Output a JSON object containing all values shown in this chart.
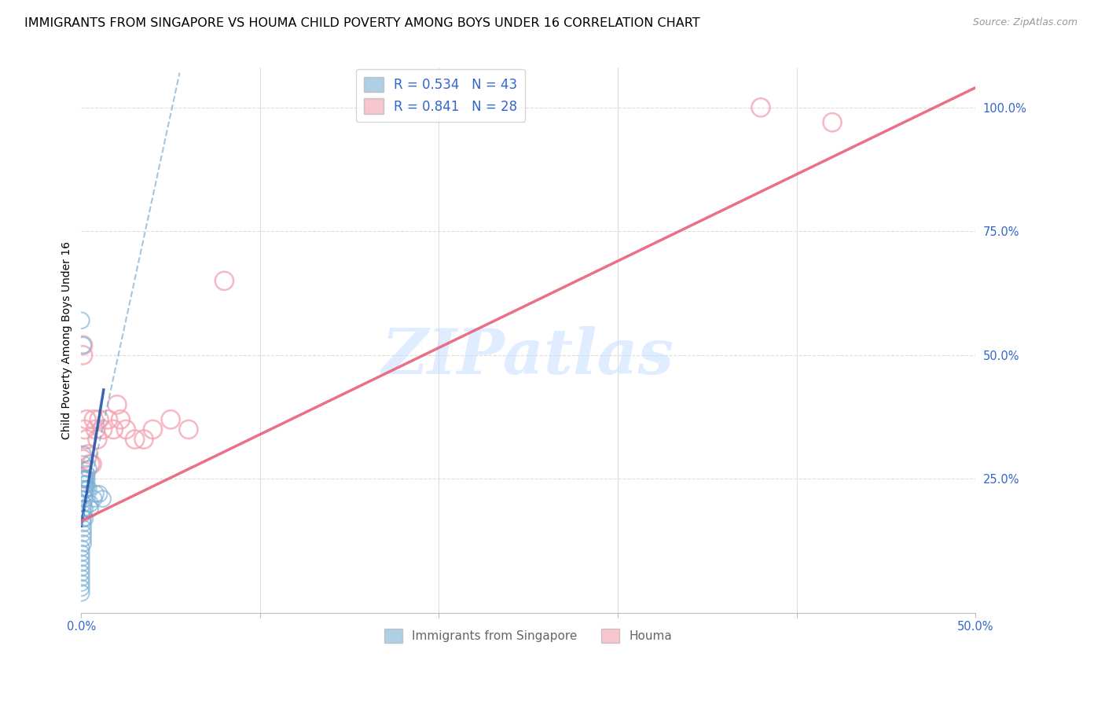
{
  "title": "IMMIGRANTS FROM SINGAPORE VS HOUMA CHILD POVERTY AMONG BOYS UNDER 16 CORRELATION CHART",
  "source": "Source: ZipAtlas.com",
  "ylabel": "Child Poverty Among Boys Under 16",
  "xlim": [
    0,
    0.5
  ],
  "ylim": [
    -0.02,
    1.08
  ],
  "ytick_positions": [
    0.25,
    0.5,
    0.75,
    1.0
  ],
  "ytick_labels": [
    "25.0%",
    "50.0%",
    "75.0%",
    "100.0%"
  ],
  "blue_color": "#7BAFD4",
  "pink_color": "#F4A0B0",
  "blue_line_color": "#2255AA",
  "pink_line_color": "#E8607A",
  "blue_R": 0.534,
  "blue_N": 43,
  "pink_R": 0.841,
  "pink_N": 28,
  "watermark": "ZIPatlas",
  "blue_scatter_x": [
    0.0,
    0.0,
    0.0,
    0.0,
    0.0,
    0.0,
    0.0,
    0.0,
    0.0,
    0.0,
    0.001,
    0.001,
    0.001,
    0.001,
    0.001,
    0.001,
    0.001,
    0.001,
    0.001,
    0.002,
    0.002,
    0.002,
    0.002,
    0.002,
    0.002,
    0.003,
    0.003,
    0.003,
    0.004,
    0.005,
    0.005,
    0.007,
    0.008,
    0.01,
    0.012,
    0.0,
    0.001,
    0.001,
    0.001,
    0.001,
    0.002,
    0.003,
    0.004
  ],
  "blue_scatter_y": [
    0.02,
    0.03,
    0.04,
    0.05,
    0.06,
    0.07,
    0.08,
    0.09,
    0.1,
    0.11,
    0.12,
    0.13,
    0.14,
    0.15,
    0.16,
    0.17,
    0.18,
    0.19,
    0.2,
    0.17,
    0.19,
    0.21,
    0.22,
    0.23,
    0.24,
    0.23,
    0.25,
    0.26,
    0.27,
    0.19,
    0.2,
    0.21,
    0.22,
    0.22,
    0.21,
    0.57,
    0.52,
    0.3,
    0.28,
    0.25,
    0.25,
    0.24,
    0.23
  ],
  "pink_scatter_x": [
    0.001,
    0.001,
    0.001,
    0.002,
    0.002,
    0.003,
    0.003,
    0.004,
    0.005,
    0.006,
    0.007,
    0.008,
    0.009,
    0.01,
    0.012,
    0.015,
    0.018,
    0.02,
    0.022,
    0.025,
    0.03,
    0.035,
    0.04,
    0.05,
    0.06,
    0.08,
    0.38,
    0.42
  ],
  "pink_scatter_y": [
    0.29,
    0.52,
    0.5,
    0.35,
    0.25,
    0.37,
    0.33,
    0.3,
    0.28,
    0.28,
    0.37,
    0.35,
    0.33,
    0.37,
    0.35,
    0.37,
    0.35,
    0.4,
    0.37,
    0.35,
    0.33,
    0.33,
    0.35,
    0.37,
    0.35,
    0.65,
    1.0,
    0.97
  ],
  "blue_solid_line_x": [
    0.0,
    0.0125
  ],
  "blue_solid_line_y": [
    0.155,
    0.43
  ],
  "blue_dash_line_x": [
    0.0,
    0.055
  ],
  "blue_dash_line_y": [
    0.155,
    1.07
  ],
  "pink_line_x": [
    0.0,
    0.5
  ],
  "pink_line_y": [
    0.165,
    1.04
  ],
  "background_color": "#ffffff",
  "grid_color": "#dddddd",
  "title_fontsize": 11.5,
  "axis_label_fontsize": 10,
  "tick_fontsize": 10.5,
  "legend_fontsize": 12
}
